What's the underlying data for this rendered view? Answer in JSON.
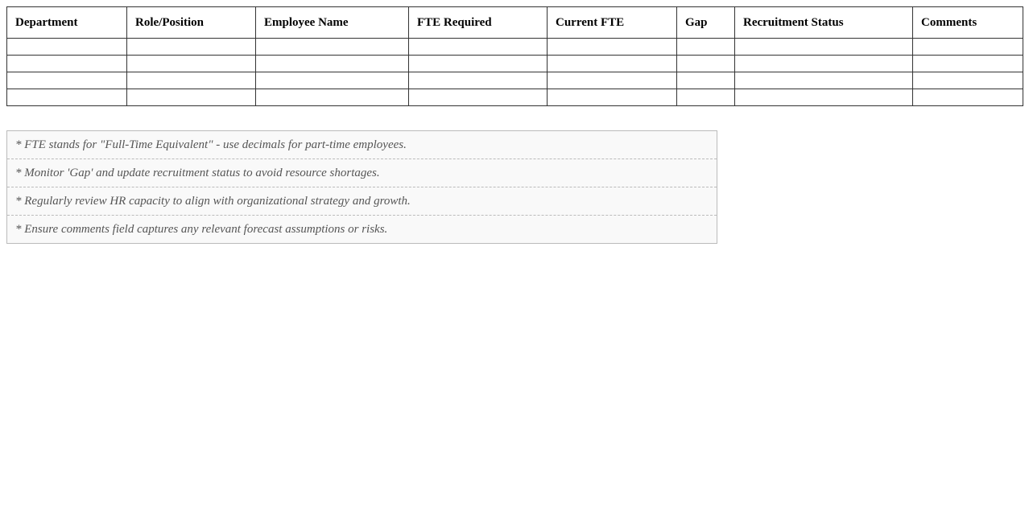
{
  "table": {
    "headers": [
      "Department",
      "Role/Position",
      "Employee Name",
      "FTE Required",
      "Current FTE",
      "Gap",
      "Recruitment Status",
      "Comments"
    ],
    "rows": [
      [
        "",
        "",
        "",
        "",
        "",
        "",
        "",
        ""
      ],
      [
        "",
        "",
        "",
        "",
        "",
        "",
        "",
        ""
      ],
      [
        "",
        "",
        "",
        "",
        "",
        "",
        "",
        ""
      ],
      [
        "",
        "",
        "",
        "",
        "",
        "",
        "",
        ""
      ]
    ]
  },
  "notes": [
    "* FTE stands for \"Full-Time Equivalent\" - use decimals for part-time employees.",
    "* Monitor 'Gap' and update recruitment status to avoid resource shortages.",
    "* Regularly review HR capacity to align with organizational strategy and growth.",
    "* Ensure comments field captures any relevant forecast assumptions or risks."
  ]
}
